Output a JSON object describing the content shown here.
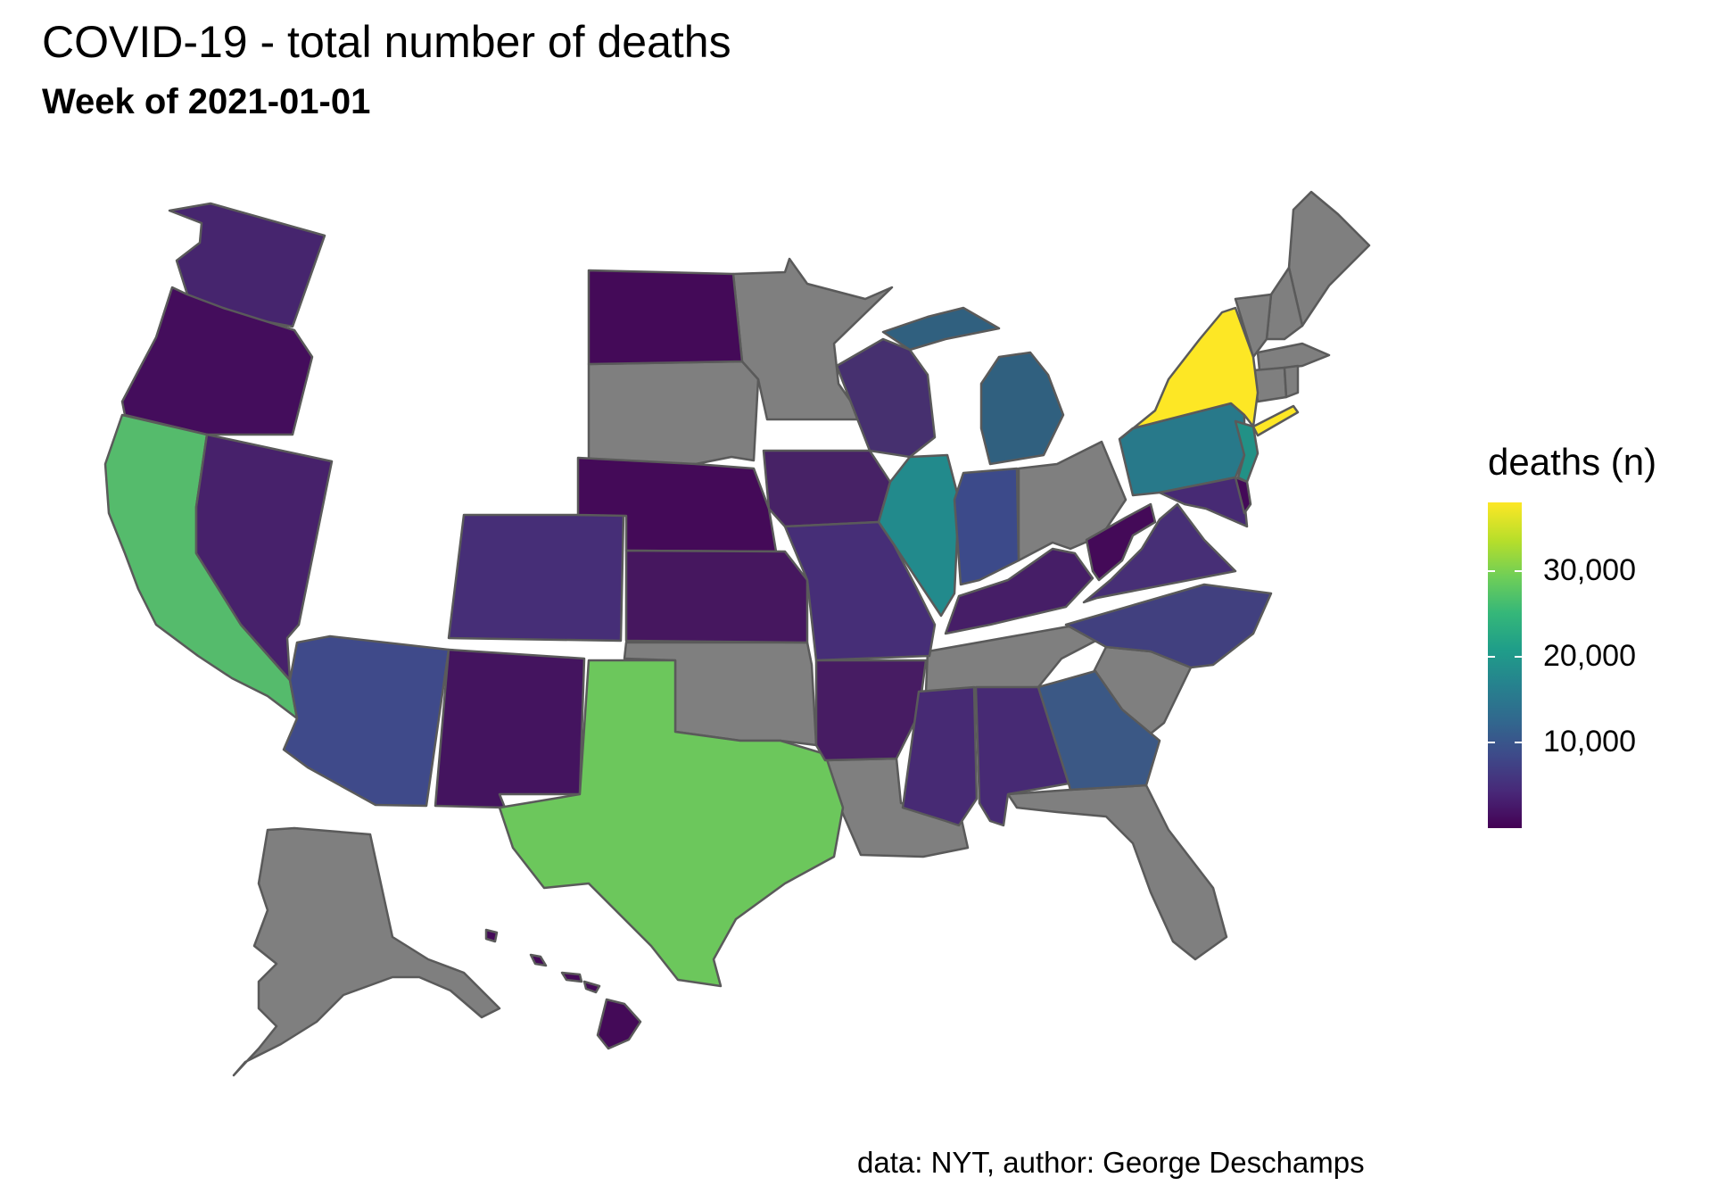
{
  "title": "COVID-19 - total number of deaths",
  "subtitle": "Week of 2021-01-01",
  "caption": "data: NYT, author: George Deschamps",
  "legend": {
    "title": "deaths (n)",
    "min": 0,
    "max": 38000,
    "ticks": [
      {
        "value": 10000,
        "label": "10,000"
      },
      {
        "value": 20000,
        "label": "20,000"
      },
      {
        "value": 30000,
        "label": "30,000"
      }
    ],
    "palette": [
      "#440154",
      "#482878",
      "#3e4989",
      "#31688e",
      "#26828e",
      "#1f9e89",
      "#35b779",
      "#6ece58",
      "#b5de2b",
      "#fde725"
    ]
  },
  "missing_color": "#7f7f7f",
  "chart_data": {
    "type": "choropleth",
    "region": "United States",
    "states": [
      {
        "state": "WA",
        "color": "#46256e",
        "has_data": true
      },
      {
        "state": "OR",
        "color": "#440d5c",
        "has_data": true
      },
      {
        "state": "CA",
        "color": "#55bb6c",
        "has_data": true
      },
      {
        "state": "NV",
        "color": "#47216b",
        "has_data": true
      },
      {
        "state": "AZ",
        "color": "#3f4a8a",
        "has_data": true
      },
      {
        "state": "NM",
        "color": "#44145f",
        "has_data": true
      },
      {
        "state": "CO",
        "color": "#462e77",
        "has_data": true
      },
      {
        "state": "TX",
        "color": "#6cc75c",
        "has_data": true
      },
      {
        "state": "ND",
        "color": "#440a58",
        "has_data": true
      },
      {
        "state": "NE",
        "color": "#440a58",
        "has_data": true
      },
      {
        "state": "KS",
        "color": "#46175f",
        "has_data": true
      },
      {
        "state": "IA",
        "color": "#472266",
        "has_data": true
      },
      {
        "state": "MO",
        "color": "#462e77",
        "has_data": true
      },
      {
        "state": "AR",
        "color": "#471c63",
        "has_data": true
      },
      {
        "state": "MS",
        "color": "#472a74",
        "has_data": true
      },
      {
        "state": "AL",
        "color": "#472a74",
        "has_data": true
      },
      {
        "state": "WI",
        "color": "#46306f",
        "has_data": true
      },
      {
        "state": "IL",
        "color": "#228a8c",
        "has_data": true
      },
      {
        "state": "MI",
        "color": "#30607f",
        "has_data": true
      },
      {
        "state": "IN",
        "color": "#3c4a8a",
        "has_data": true
      },
      {
        "state": "KY",
        "color": "#461e67",
        "has_data": true
      },
      {
        "state": "WV",
        "color": "#440a58",
        "has_data": true
      },
      {
        "state": "VA",
        "color": "#472f76",
        "has_data": true
      },
      {
        "state": "NC",
        "color": "#41407f",
        "has_data": true
      },
      {
        "state": "GA",
        "color": "#3b5885",
        "has_data": true
      },
      {
        "state": "PA",
        "color": "#28798a",
        "has_data": true
      },
      {
        "state": "NJ",
        "color": "#229186",
        "has_data": true
      },
      {
        "state": "NY",
        "color": "#fde725",
        "has_data": true
      },
      {
        "state": "MD",
        "color": "#472a74",
        "has_data": true
      },
      {
        "state": "DE",
        "color": "#440a58",
        "has_data": true
      },
      {
        "state": "HI",
        "color": "#440a58",
        "has_data": true
      },
      {
        "state": "MT",
        "color": "#7f7f7f",
        "has_data": false
      },
      {
        "state": "ID",
        "color": "#7f7f7f",
        "has_data": false
      },
      {
        "state": "WY",
        "color": "#7f7f7f",
        "has_data": false
      },
      {
        "state": "UT",
        "color": "#7f7f7f",
        "has_data": false
      },
      {
        "state": "SD",
        "color": "#7f7f7f",
        "has_data": false
      },
      {
        "state": "MN",
        "color": "#7f7f7f",
        "has_data": false
      },
      {
        "state": "OK",
        "color": "#7f7f7f",
        "has_data": false
      },
      {
        "state": "LA",
        "color": "#7f7f7f",
        "has_data": false
      },
      {
        "state": "TN",
        "color": "#7f7f7f",
        "has_data": false
      },
      {
        "state": "OH",
        "color": "#7f7f7f",
        "has_data": false
      },
      {
        "state": "SC",
        "color": "#7f7f7f",
        "has_data": false
      },
      {
        "state": "FL",
        "color": "#7f7f7f",
        "has_data": false
      },
      {
        "state": "ME",
        "color": "#7f7f7f",
        "has_data": false
      },
      {
        "state": "NH",
        "color": "#7f7f7f",
        "has_data": false
      },
      {
        "state": "VT",
        "color": "#7f7f7f",
        "has_data": false
      },
      {
        "state": "MA",
        "color": "#7f7f7f",
        "has_data": false
      },
      {
        "state": "CT",
        "color": "#7f7f7f",
        "has_data": false
      },
      {
        "state": "RI",
        "color": "#7f7f7f",
        "has_data": false
      },
      {
        "state": "AK",
        "color": "#7f7f7f",
        "has_data": false
      }
    ]
  }
}
